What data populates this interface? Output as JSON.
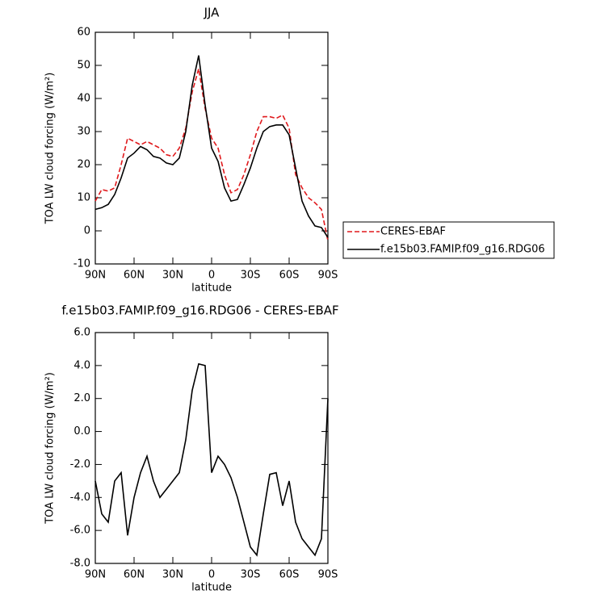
{
  "chart_data": [
    {
      "type": "line",
      "title": "JJA",
      "xlabel": "latitude",
      "ylabel": "TOA LW cloud forcing (W/m²)",
      "x": [
        90,
        85,
        80,
        75,
        70,
        65,
        60,
        55,
        50,
        45,
        40,
        35,
        30,
        25,
        20,
        15,
        10,
        5,
        0,
        -5,
        -10,
        -15,
        -20,
        -25,
        -30,
        -35,
        -40,
        -45,
        -50,
        -55,
        -60,
        -65,
        -70,
        -75,
        -80,
        -85,
        -90
      ],
      "series": [
        {
          "name": "CERES-EBAF",
          "color": "#e0191c",
          "linestyle": "dashed",
          "values": [
            9,
            12.5,
            12,
            13,
            20,
            28,
            27,
            26,
            27,
            26,
            25,
            23,
            22.5,
            25,
            31,
            42,
            49,
            37,
            28,
            25,
            17,
            11.5,
            12.5,
            17,
            23,
            30,
            34.5,
            34.5,
            34,
            35,
            31,
            17,
            13,
            10,
            8.5,
            6.5,
            -3
          ]
        },
        {
          "name": "f.e15b03.FAMIP.f09_g16.RDG06",
          "color": "#000000",
          "linestyle": "solid",
          "values": [
            6.5,
            7,
            8,
            11,
            16,
            22,
            23.5,
            25.5,
            24.5,
            22.5,
            22,
            20.5,
            20,
            22,
            30,
            44,
            53,
            38,
            25,
            21,
            13,
            9,
            9.5,
            14,
            19,
            25,
            30,
            31.5,
            32,
            32,
            29,
            19,
            9,
            4.5,
            1.5,
            1,
            -2
          ]
        }
      ],
      "xlim": [
        90,
        -90
      ],
      "xticks": [
        {
          "value": 90,
          "label": "90N"
        },
        {
          "value": 60,
          "label": "60N"
        },
        {
          "value": 30,
          "label": "30N"
        },
        0,
        {
          "value": -30,
          "label": "30S"
        },
        {
          "value": -60,
          "label": "60S"
        },
        {
          "value": -90,
          "label": "90S"
        }
      ],
      "ylim": [
        -10,
        60
      ],
      "yticks": [
        -10,
        0,
        10,
        20,
        30,
        40,
        50,
        60
      ],
      "legend": true
    },
    {
      "type": "line",
      "title": "f.e15b03.FAMIP.f09_g16.RDG06 - CERES-EBAF",
      "xlabel": "latitude",
      "ylabel": "TOA LW cloud forcing (W/m²)",
      "x": [
        90,
        85,
        80,
        75,
        70,
        65,
        60,
        55,
        50,
        45,
        40,
        35,
        30,
        25,
        20,
        15,
        10,
        5,
        0,
        -5,
        -10,
        -15,
        -20,
        -25,
        -30,
        -35,
        -40,
        -45,
        -50,
        -55,
        -60,
        -65,
        -70,
        -75,
        -80,
        -85,
        -90
      ],
      "series": [
        {
          "name": "f.e15b03.FAMIP.f09_g16.RDG06 - CERES-EBAF",
          "color": "#000000",
          "linestyle": "solid",
          "values": [
            -3,
            -5,
            -5.5,
            -3,
            -2.5,
            -6.3,
            -4,
            -2.5,
            -1.5,
            -3,
            -4,
            -3.5,
            -3,
            -2.5,
            -0.5,
            2.5,
            4.1,
            4,
            -2.5,
            -1.5,
            -2,
            -2.8,
            -4,
            -5.5,
            -7,
            -7.5,
            -5,
            -2.6,
            -2.5,
            -4.5,
            -3,
            -5.5,
            -6.5,
            -7,
            -7.5,
            -6.5,
            2
          ]
        }
      ],
      "xlim": [
        90,
        -90
      ],
      "xticks": [
        {
          "value": 90,
          "label": "90N"
        },
        {
          "value": 60,
          "label": "60N"
        },
        {
          "value": 30,
          "label": "30N"
        },
        0,
        {
          "value": -30,
          "label": "30S"
        },
        {
          "value": -60,
          "label": "60S"
        },
        {
          "value": -90,
          "label": "90S"
        }
      ],
      "ylim": [
        -8,
        6
      ],
      "yticks": [
        {
          "value": -8,
          "label": "-8.0"
        },
        {
          "value": -6,
          "label": "-6.0"
        },
        {
          "value": -4,
          "label": "-4.0"
        },
        {
          "value": -2,
          "label": "-2.0"
        },
        {
          "value": 0,
          "label": "0.0"
        },
        {
          "value": 2,
          "label": "2.0"
        },
        {
          "value": 4,
          "label": "4.0"
        },
        {
          "value": 6,
          "label": "6.0"
        }
      ],
      "legend": false
    }
  ]
}
